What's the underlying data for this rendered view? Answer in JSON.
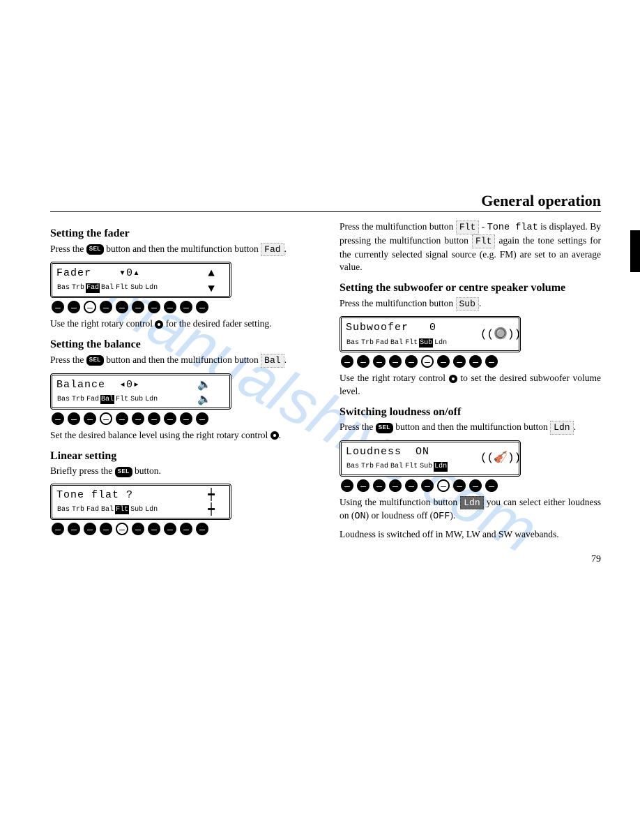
{
  "header": "General operation",
  "page_number": "79",
  "watermark": "manualshive.com",
  "sel_label": "SEL",
  "left": {
    "fader": {
      "heading": "Setting the fader",
      "line1a": "Press the ",
      "line1b": " button and then the multifunction button ",
      "softkey": "Fad",
      "period": ".",
      "lcd_top": "Fader    ▾0▴",
      "lcd_labels": [
        "Bas",
        "Trb",
        "Fad",
        "Bal",
        "Flt",
        "Sub",
        "Ldn"
      ],
      "lcd_selected": 2,
      "btn_open_index": 2,
      "after": "Use the right rotary control ",
      "after2": " for the desired fader setting."
    },
    "balance": {
      "heading": "Setting the balance",
      "line1a": "Press the ",
      "line1b": " button and then the multifunction button ",
      "softkey": "Bal",
      "period": ".",
      "lcd_top": "Balance  ◂0▸",
      "lcd_labels": [
        "Bas",
        "Trb",
        "Fad",
        "Bal",
        "Flt",
        "Sub",
        "Ldn"
      ],
      "lcd_selected": 3,
      "btn_open_index": 3,
      "after": "Set the desired balance level using the right rotary control ",
      "after2": "."
    },
    "linear": {
      "heading": "Linear setting",
      "line1a": "Briefly press the ",
      "line1b": " button.",
      "lcd_top": "Tone flat ?",
      "lcd_labels": [
        "Bas",
        "Trb",
        "Fad",
        "Bal",
        "Flt",
        "Sub",
        "Ldn"
      ],
      "lcd_selected": 4,
      "btn_open_index": 4
    }
  },
  "right": {
    "flat_para": {
      "a": "Press the multifunction button ",
      "k1": "Flt",
      "b": " - ",
      "mono": "Tone  flat",
      "c": " is displayed. By pressing the multifunction button ",
      "k2": "Flt",
      "d": " again the tone settings for the currently selected signal source (e.g. FM) are set to an average value."
    },
    "sub": {
      "heading": "Setting the subwoofer or centre speaker volume",
      "line1a": "Press the multifunction button ",
      "softkey": "Sub",
      "period": ".",
      "lcd_top": "Subwoofer   0",
      "lcd_labels": [
        "Bas",
        "Trb",
        "Fad",
        "Bal",
        "Flt",
        "Sub",
        "Ldn"
      ],
      "lcd_selected": 5,
      "btn_open_index": 5,
      "after": "Use the right rotary control ",
      "after2": " to set the desired subwoofer volume level."
    },
    "loud": {
      "heading": "Switching loudness on/off",
      "line1a": "Press the ",
      "line1b": " button and then the multifunction button ",
      "softkey": "Ldn",
      "period": ".",
      "lcd_top": "Loudness  ON",
      "lcd_labels": [
        "Bas",
        "Trb",
        "Fad",
        "Bal",
        "Flt",
        "Sub",
        "Ldn"
      ],
      "lcd_selected": 6,
      "btn_open_index": 6,
      "after_a": "Using the multifunction button ",
      "after_k": "Ldn",
      "after_b": " you can select either loudness on (",
      "on": "ON",
      "after_c": ") or loudness off (",
      "off": "OFF",
      "after_d": ").",
      "line3": "Loudness is switched off in MW, LW and SW wavebands."
    }
  }
}
